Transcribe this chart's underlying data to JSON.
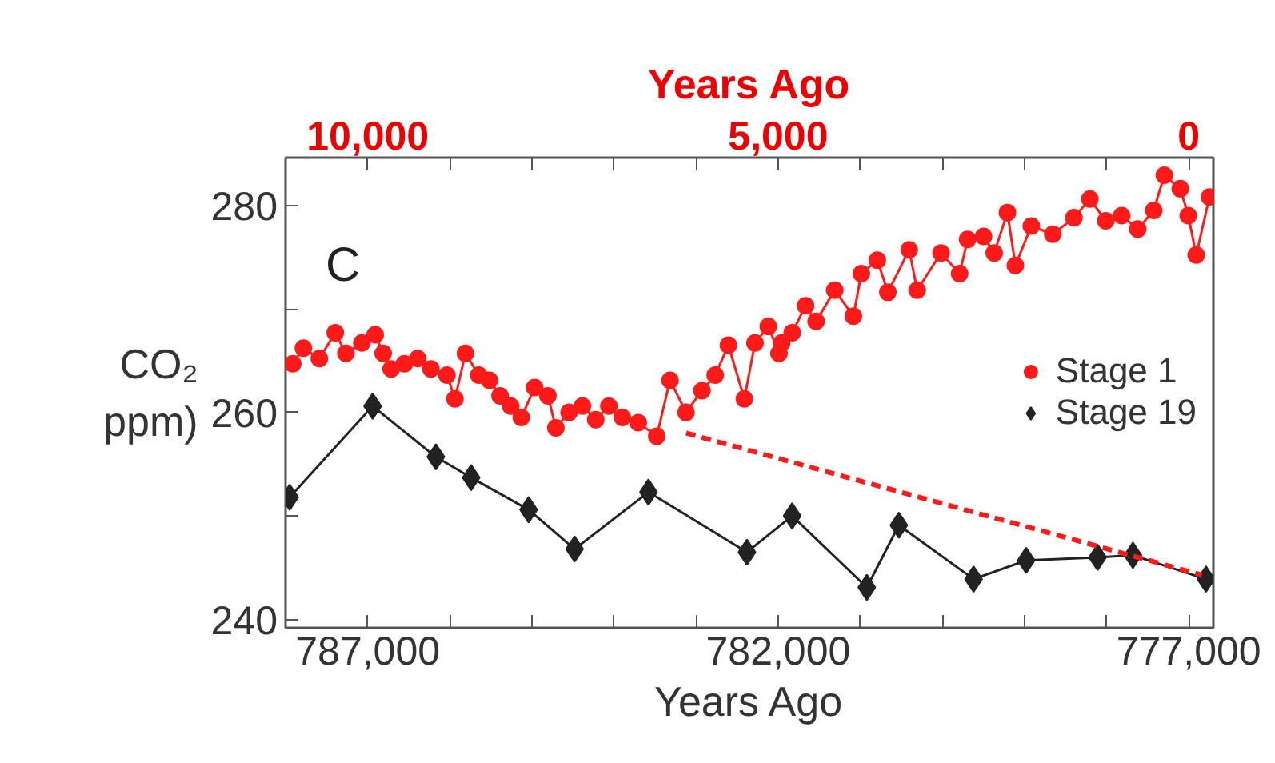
{
  "chart_data": {
    "type": "line",
    "xlabel": "Years Ago",
    "x2label": "Years Ago",
    "ylabel": "CO₂\nppm)",
    "annotations": [
      "C"
    ],
    "xlim": [
      788000,
      776700
    ],
    "x2lim": [
      11000,
      -300
    ],
    "ylim": [
      239.2,
      284.6
    ],
    "xticks": [
      {
        "value": 787000,
        "label": "787,000"
      },
      {
        "value": 786000,
        "label": null
      },
      {
        "value": 785000,
        "label": null
      },
      {
        "value": 784000,
        "label": null
      },
      {
        "value": 783000,
        "label": null
      },
      {
        "value": 782000,
        "label": "782,000"
      },
      {
        "value": 781000,
        "label": null
      },
      {
        "value": 780000,
        "label": null
      },
      {
        "value": 779000,
        "label": null
      },
      {
        "value": 778000,
        "label": null
      },
      {
        "value": 777000,
        "label": "777,000"
      }
    ],
    "x2ticks": [
      {
        "value": 10000,
        "label": "10,000"
      },
      {
        "value": 9000,
        "label": null
      },
      {
        "value": 8000,
        "label": null
      },
      {
        "value": 7000,
        "label": null
      },
      {
        "value": 6000,
        "label": null
      },
      {
        "value": 5000,
        "label": "5,000"
      },
      {
        "value": 4000,
        "label": null
      },
      {
        "value": 3000,
        "label": null
      },
      {
        "value": 2000,
        "label": null
      },
      {
        "value": 1000,
        "label": null
      },
      0
    ],
    "yticks": [
      240,
      {
        "value": 250,
        "label": null
      },
      260,
      {
        "value": 270,
        "label": null
      },
      280
    ],
    "legend": "right",
    "grid": false,
    "series": [
      {
        "name": "Stage 1",
        "color": "#ff1a1a",
        "axis": "x2",
        "marker": "circle",
        "line_style": "solid",
        "x": [
          10913,
          10783,
          10589,
          10395,
          10266,
          10072,
          9909,
          9812,
          9715,
          9553,
          9392,
          9230,
          9035,
          8938,
          8810,
          8647,
          8518,
          8388,
          8259,
          8130,
          7967,
          7806,
          7709,
          7548,
          7385,
          7223,
          7062,
          6899,
          6705,
          6479,
          6317,
          6122,
          5928,
          5767,
          5606,
          5412,
          5282,
          5120,
          4990,
          4957,
          4829,
          4666,
          4538,
          4311,
          4084,
          3987,
          3792,
          3664,
          3404,
          3307,
          3016,
          2790,
          2693,
          2499,
          2369,
          2208,
          2111,
          1917,
          1656,
          1398,
          1204,
          1010,
          816,
          621,
          427,
          297,
          103,
          6,
          -91,
          -252
        ],
        "values": [
          264.7,
          266.2,
          265.2,
          267.7,
          265.7,
          266.7,
          267.5,
          265.7,
          264.2,
          264.7,
          265.2,
          264.2,
          263.6,
          261.3,
          265.7,
          263.6,
          263.1,
          261.6,
          260.6,
          259.5,
          262.4,
          261.6,
          258.5,
          260.0,
          260.6,
          259.3,
          260.6,
          259.5,
          259.0,
          257.7,
          263.1,
          260.0,
          262.1,
          263.6,
          266.5,
          261.3,
          266.7,
          268.3,
          265.7,
          266.7,
          267.7,
          270.3,
          268.8,
          271.8,
          269.3,
          273.4,
          274.7,
          271.6,
          275.7,
          271.8,
          275.4,
          273.4,
          276.7,
          277.0,
          275.4,
          279.3,
          274.2,
          278.0,
          277.2,
          278.8,
          280.6,
          278.5,
          279.0,
          277.7,
          279.5,
          282.9,
          281.6,
          279.0,
          275.2,
          280.8
        ]
      },
      {
        "name": "Stage 19",
        "color": "#222222",
        "marker": "diamond",
        "line_style": "solid",
        "x": [
          787950,
          786940,
          786170,
          785740,
          785040,
          784480,
          783580,
          782380,
          781830,
          780920,
          780530,
          779620,
          778980,
          778110,
          777680,
          776790
        ],
        "values": [
          251.8,
          260.6,
          255.7,
          253.7,
          250.6,
          246.8,
          252.3,
          246.5,
          250.0,
          243.1,
          249.1,
          243.9,
          245.7,
          246.0,
          246.2,
          243.9
        ]
      },
      {
        "type": "line",
        "color": "#ff1a1a",
        "axis": "x2",
        "marker": "none",
        "line_style": "dashed",
        "x": [
          6120,
          -160
        ],
        "values": [
          258.0,
          244.3
        ]
      }
    ]
  }
}
